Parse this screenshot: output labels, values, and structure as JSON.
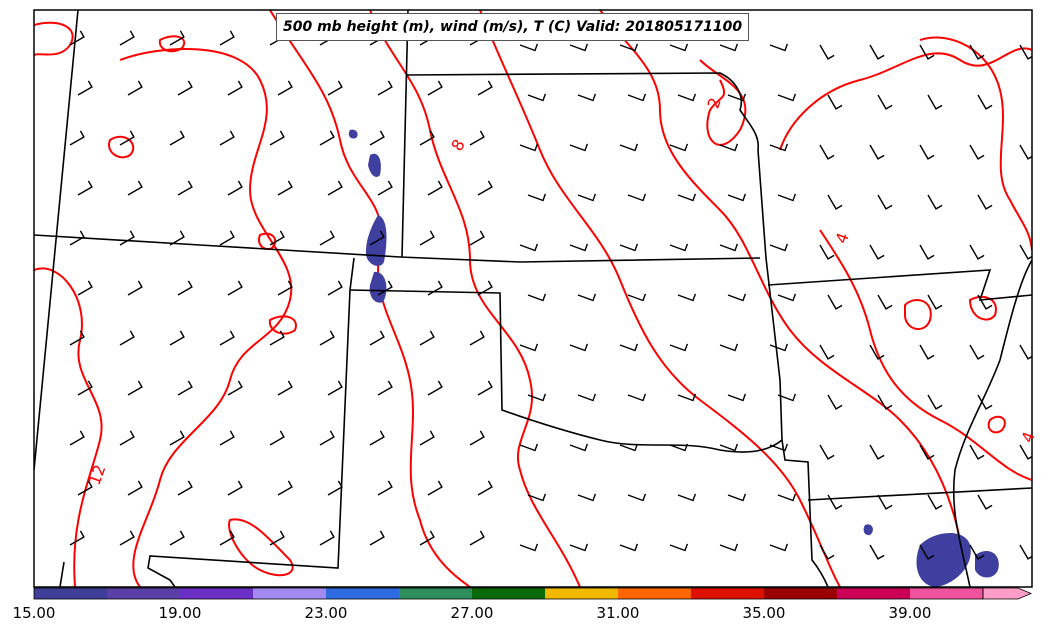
{
  "title": "500 mb height (m), wind (m/s), T (C) Valid: 201805171100",
  "contour_labels": [
    {
      "text": "8"
    },
    {
      "text": "2"
    },
    {
      "text": "4"
    },
    {
      "text": "12"
    },
    {
      "text": "4"
    }
  ],
  "colorbar": {
    "colors": [
      "#3f3f9a",
      "#5a3fa6",
      "#6a2fc4",
      "#a38af0",
      "#2e6be0",
      "#2e8f5c",
      "#0a6a0a",
      "#f1b800",
      "#ff6600",
      "#e01000",
      "#9a0000",
      "#cc0055",
      "#f0539e",
      "#ff9ec8"
    ],
    "tick_labels": [
      "15.00",
      "19.00",
      "23.00",
      "27.00",
      "31.00",
      "35.00",
      "39.00"
    ]
  },
  "colors": {
    "contour": "#ff0000",
    "boundary": "#000000",
    "precip": "#3f3fa0"
  }
}
